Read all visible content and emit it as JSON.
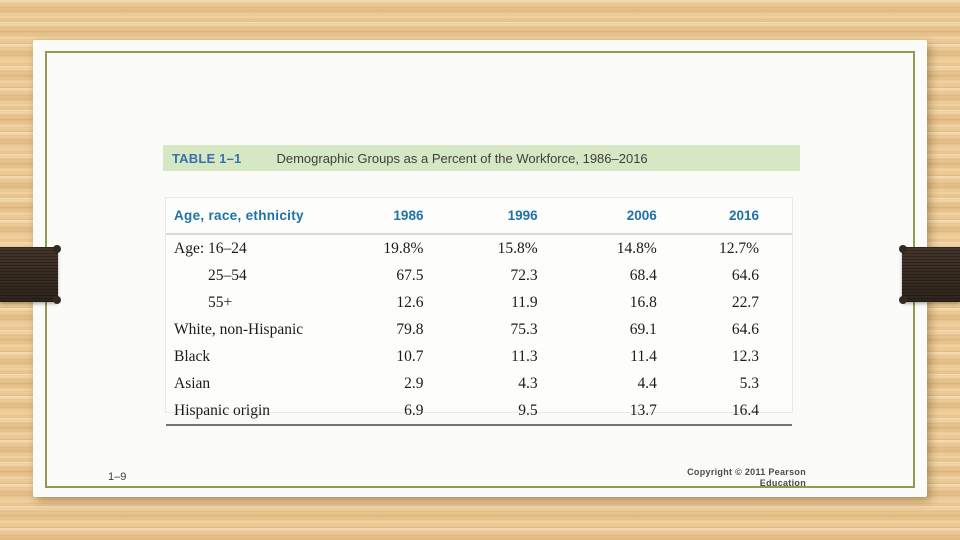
{
  "slide": {
    "page_number": "1–9",
    "copyright_line1": "Copyright © 2011 Pearson",
    "copyright_line2": "Education"
  },
  "table": {
    "label": "TABLE 1–1",
    "title": "Demographic Groups as a Percent of the Workforce, 1986–2016",
    "columns": [
      "Age, race, ethnicity",
      "1986",
      "1996",
      "2006",
      "2016"
    ],
    "rows": [
      {
        "label": "Age: 16–24",
        "indent": false,
        "values": [
          "19.8%",
          "15.8%",
          "14.8%",
          "12.7%"
        ]
      },
      {
        "label": "25–54",
        "indent": true,
        "values": [
          "67.5",
          "72.3",
          "68.4",
          "64.6"
        ]
      },
      {
        "label": "55+",
        "indent": true,
        "values": [
          "12.6",
          "11.9",
          "16.8",
          "22.7"
        ]
      },
      {
        "label": "White, non-Hispanic",
        "indent": false,
        "values": [
          "79.8",
          "75.3",
          "69.1",
          "64.6"
        ]
      },
      {
        "label": "Black",
        "indent": false,
        "values": [
          "10.7",
          "11.3",
          "11.4",
          "12.3"
        ]
      },
      {
        "label": "Asian",
        "indent": false,
        "values": [
          "2.9",
          "4.3",
          "4.4",
          "5.3"
        ]
      },
      {
        "label": "Hispanic origin",
        "indent": false,
        "values": [
          "6.9",
          "9.5",
          "13.7",
          "16.4"
        ]
      }
    ]
  },
  "chart_data": {
    "type": "table",
    "title": "Demographic Groups as a Percent of the Workforce, 1986–2016",
    "columns": [
      "Age, race, ethnicity",
      "1986",
      "1996",
      "2006",
      "2016"
    ],
    "rows": [
      [
        "Age: 16–24",
        19.8,
        15.8,
        14.8,
        12.7
      ],
      [
        "25–54",
        67.5,
        72.3,
        68.4,
        64.6
      ],
      [
        "55+",
        12.6,
        11.9,
        16.8,
        22.7
      ],
      [
        "White, non-Hispanic",
        79.8,
        75.3,
        69.1,
        64.6
      ],
      [
        "Black",
        10.7,
        11.3,
        11.4,
        12.3
      ],
      [
        "Asian",
        2.9,
        4.3,
        4.4,
        5.3
      ],
      [
        "Hispanic origin",
        6.9,
        9.5,
        13.7,
        16.4
      ]
    ],
    "units": "percent of workforce"
  },
  "colors": {
    "caption_bar_bg": "#d6e7c3",
    "table_label_blue": "#3b70ad",
    "column_header_teal": "#1e72a6",
    "slide_border_green": "#8d9c53",
    "wood_tan": "#ebc893",
    "clip_brown": "#372c22"
  }
}
